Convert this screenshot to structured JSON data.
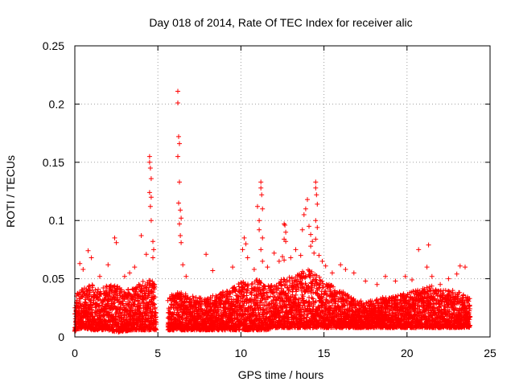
{
  "chart_data": {
    "type": "scatter",
    "title": "Day 018 of 2014, Rate Of TEC Index for receiver alic",
    "xlabel": "GPS time / hours",
    "ylabel": "ROTI / TECUs",
    "xlim": [
      0,
      25
    ],
    "ylim": [
      0,
      0.25
    ],
    "xticks": [
      0,
      5,
      10,
      15,
      20,
      25
    ],
    "xtick_labels": [
      "0",
      "5",
      "10",
      "15",
      "20",
      "25"
    ],
    "yticks": [
      0,
      0.05,
      0.1,
      0.15,
      0.2,
      0.25
    ],
    "ytick_labels": [
      "0",
      "0.05",
      "0.1",
      "0.15",
      "0.2",
      "0.25"
    ],
    "grid": true,
    "marker": "plus",
    "color": "#ff0000",
    "data_gap_hours": [
      4.9,
      5.6
    ],
    "series": [
      {
        "name": "ROTI",
        "points": [
          [
            0.3,
            0.063
          ],
          [
            0.5,
            0.058
          ],
          [
            0.8,
            0.074
          ],
          [
            1.0,
            0.068
          ],
          [
            1.5,
            0.052
          ],
          [
            2.0,
            0.062
          ],
          [
            2.4,
            0.085
          ],
          [
            2.5,
            0.081
          ],
          [
            3.0,
            0.052
          ],
          [
            3.3,
            0.055
          ],
          [
            3.6,
            0.06
          ],
          [
            4.0,
            0.087
          ],
          [
            4.3,
            0.071
          ],
          [
            4.5,
            0.155
          ],
          [
            4.5,
            0.15
          ],
          [
            4.55,
            0.145
          ],
          [
            4.6,
            0.136
          ],
          [
            4.5,
            0.124
          ],
          [
            4.6,
            0.12
          ],
          [
            4.55,
            0.112
          ],
          [
            4.6,
            0.1
          ],
          [
            4.7,
            0.082
          ],
          [
            4.75,
            0.075
          ],
          [
            4.7,
            0.068
          ],
          [
            6.2,
            0.211
          ],
          [
            6.2,
            0.201
          ],
          [
            6.25,
            0.172
          ],
          [
            6.3,
            0.166
          ],
          [
            6.2,
            0.155
          ],
          [
            6.3,
            0.133
          ],
          [
            6.25,
            0.115
          ],
          [
            6.35,
            0.109
          ],
          [
            6.4,
            0.102
          ],
          [
            6.3,
            0.097
          ],
          [
            6.35,
            0.087
          ],
          [
            6.4,
            0.081
          ],
          [
            6.5,
            0.062
          ],
          [
            6.7,
            0.052
          ],
          [
            7.9,
            0.071
          ],
          [
            8.3,
            0.057
          ],
          [
            9.5,
            0.06
          ],
          [
            10.2,
            0.085
          ],
          [
            10.3,
            0.08
          ],
          [
            10.1,
            0.075
          ],
          [
            10.4,
            0.068
          ],
          [
            10.8,
            0.058
          ],
          [
            11.0,
            0.112
          ],
          [
            11.1,
            0.1
          ],
          [
            11.2,
            0.133
          ],
          [
            11.2,
            0.128
          ],
          [
            11.25,
            0.122
          ],
          [
            11.3,
            0.11
          ],
          [
            11.1,
            0.092
          ],
          [
            11.3,
            0.085
          ],
          [
            11.2,
            0.075
          ],
          [
            11.3,
            0.065
          ],
          [
            11.6,
            0.06
          ],
          [
            12.0,
            0.072
          ],
          [
            12.3,
            0.065
          ],
          [
            12.6,
            0.097
          ],
          [
            12.65,
            0.096
          ],
          [
            12.7,
            0.09
          ],
          [
            12.6,
            0.084
          ],
          [
            12.7,
            0.082
          ],
          [
            12.5,
            0.069
          ],
          [
            12.6,
            0.066
          ],
          [
            13.0,
            0.068
          ],
          [
            13.3,
            0.075
          ],
          [
            13.6,
            0.07
          ],
          [
            13.7,
            0.092
          ],
          [
            13.8,
            0.105
          ],
          [
            13.9,
            0.11
          ],
          [
            14.0,
            0.118
          ],
          [
            14.1,
            0.095
          ],
          [
            14.2,
            0.088
          ],
          [
            14.3,
            0.082
          ],
          [
            14.2,
            0.078
          ],
          [
            14.4,
            0.072
          ],
          [
            14.5,
            0.133
          ],
          [
            14.5,
            0.128
          ],
          [
            14.55,
            0.122
          ],
          [
            14.6,
            0.114
          ],
          [
            14.5,
            0.1
          ],
          [
            14.6,
            0.094
          ],
          [
            14.5,
            0.084
          ],
          [
            14.7,
            0.07
          ],
          [
            14.9,
            0.065
          ],
          [
            15.1,
            0.061
          ],
          [
            15.5,
            0.055
          ],
          [
            16.0,
            0.062
          ],
          [
            16.3,
            0.058
          ],
          [
            16.8,
            0.055
          ],
          [
            17.5,
            0.048
          ],
          [
            18.2,
            0.045
          ],
          [
            18.7,
            0.052
          ],
          [
            19.3,
            0.048
          ],
          [
            19.9,
            0.052
          ],
          [
            20.3,
            0.049
          ],
          [
            20.7,
            0.075
          ],
          [
            21.2,
            0.06
          ],
          [
            21.3,
            0.079
          ],
          [
            21.5,
            0.052
          ],
          [
            22.0,
            0.045
          ],
          [
            22.5,
            0.05
          ],
          [
            23.0,
            0.054
          ],
          [
            23.2,
            0.061
          ],
          [
            23.5,
            0.06
          ]
        ],
        "density_envelope": [
          [
            0.0,
            0.005,
            0.036
          ],
          [
            0.5,
            0.008,
            0.042
          ],
          [
            1.0,
            0.006,
            0.046
          ],
          [
            1.5,
            0.006,
            0.04
          ],
          [
            2.0,
            0.006,
            0.045
          ],
          [
            2.5,
            0.004,
            0.044
          ],
          [
            3.0,
            0.005,
            0.04
          ],
          [
            3.5,
            0.006,
            0.042
          ],
          [
            4.0,
            0.006,
            0.048
          ],
          [
            4.5,
            0.006,
            0.05
          ],
          [
            4.9,
            0.006,
            0.045
          ],
          [
            5.6,
            0.006,
            0.032
          ],
          [
            6.0,
            0.006,
            0.04
          ],
          [
            6.5,
            0.006,
            0.038
          ],
          [
            7.0,
            0.006,
            0.036
          ],
          [
            7.5,
            0.006,
            0.034
          ],
          [
            8.0,
            0.006,
            0.035
          ],
          [
            8.5,
            0.006,
            0.036
          ],
          [
            9.0,
            0.006,
            0.04
          ],
          [
            9.5,
            0.006,
            0.042
          ],
          [
            10.0,
            0.006,
            0.048
          ],
          [
            10.5,
            0.006,
            0.045
          ],
          [
            11.0,
            0.006,
            0.05
          ],
          [
            11.5,
            0.006,
            0.044
          ],
          [
            12.0,
            0.008,
            0.045
          ],
          [
            12.5,
            0.008,
            0.05
          ],
          [
            13.0,
            0.008,
            0.052
          ],
          [
            13.5,
            0.008,
            0.055
          ],
          [
            14.0,
            0.008,
            0.058
          ],
          [
            14.5,
            0.008,
            0.055
          ],
          [
            15.0,
            0.008,
            0.048
          ],
          [
            15.5,
            0.008,
            0.044
          ],
          [
            16.0,
            0.008,
            0.04
          ],
          [
            16.5,
            0.008,
            0.036
          ],
          [
            17.0,
            0.008,
            0.032
          ],
          [
            17.5,
            0.008,
            0.03
          ],
          [
            18.0,
            0.008,
            0.032
          ],
          [
            18.5,
            0.008,
            0.034
          ],
          [
            19.0,
            0.008,
            0.034
          ],
          [
            19.5,
            0.008,
            0.036
          ],
          [
            20.0,
            0.008,
            0.038
          ],
          [
            20.5,
            0.008,
            0.04
          ],
          [
            21.0,
            0.008,
            0.042
          ],
          [
            21.5,
            0.008,
            0.044
          ],
          [
            22.0,
            0.008,
            0.04
          ],
          [
            22.5,
            0.008,
            0.04
          ],
          [
            23.0,
            0.008,
            0.04
          ],
          [
            23.5,
            0.008,
            0.036
          ],
          [
            23.8,
            0.008,
            0.034
          ]
        ]
      }
    ]
  }
}
